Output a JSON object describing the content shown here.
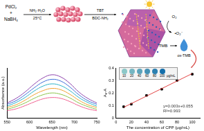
{
  "diagram": {
    "reactants": [
      "PdCl₂",
      "+",
      "NaBH₄"
    ],
    "step1": {
      "above": "NH₂·H₂O",
      "below": "25°C"
    },
    "step2": {
      "above": "TBT",
      "below": "BDC-NH₂"
    },
    "oxygen": "O₂",
    "radical": "•O₂⁻",
    "substrate": "TMB",
    "product": "ox-TMB"
  },
  "chart_data": [
    {
      "type": "line",
      "x_label": "Wavelength (nm)",
      "y_label": "Absorbance (a.u.)",
      "x": [
        550,
        570,
        590,
        610,
        630,
        650,
        670,
        690,
        710,
        730,
        750
      ],
      "xlim": [
        550,
        750
      ],
      "xticks": [
        550,
        600,
        650,
        700,
        750
      ],
      "ylim": [
        0,
        1.1
      ],
      "tick_labels": "x",
      "grid": false,
      "series": [
        {
          "color": "#8e44ad",
          "values": [
            0.33,
            0.43,
            0.57,
            0.74,
            0.88,
            0.95,
            0.9,
            0.76,
            0.57,
            0.43,
            0.33
          ]
        },
        {
          "color": "#3f6fd8",
          "values": [
            0.3,
            0.38,
            0.51,
            0.66,
            0.79,
            0.85,
            0.81,
            0.68,
            0.51,
            0.38,
            0.3
          ]
        },
        {
          "color": "#2bb3c9",
          "values": [
            0.26,
            0.34,
            0.45,
            0.59,
            0.7,
            0.75,
            0.71,
            0.6,
            0.45,
            0.34,
            0.26
          ]
        },
        {
          "color": "#f0a030",
          "values": [
            0.23,
            0.29,
            0.39,
            0.51,
            0.6,
            0.65,
            0.62,
            0.52,
            0.39,
            0.29,
            0.23
          ]
        },
        {
          "color": "#8bc34a",
          "values": [
            0.19,
            0.25,
            0.33,
            0.43,
            0.51,
            0.55,
            0.52,
            0.44,
            0.33,
            0.25,
            0.19
          ]
        },
        {
          "color": "#f06292",
          "values": [
            0.16,
            0.2,
            0.27,
            0.35,
            0.42,
            0.45,
            0.43,
            0.36,
            0.27,
            0.2,
            0.16
          ]
        }
      ]
    },
    {
      "type": "scatter",
      "x_label": "The concentration of CPP (μg/mL)",
      "y_label": "A₀-A",
      "x": [
        10,
        20,
        40,
        60,
        80,
        100
      ],
      "values": [
        0.09,
        0.11,
        0.18,
        0.23,
        0.3,
        0.35
      ],
      "color": "#000000",
      "marker": "square",
      "fit": {
        "x": [
          10,
          100
        ],
        "values": [
          0.085,
          0.355
        ],
        "color": "#e03030"
      },
      "annotations": [
        "y=0.003x+0.055",
        "R²=0.993"
      ],
      "inset": {
        "labels": [
          "10",
          "20",
          "40",
          "60",
          "80",
          "100"
        ],
        "unit": "μg/mL"
      },
      "xlim": [
        0,
        110
      ],
      "xticks": [
        0,
        20,
        40,
        60,
        80,
        100
      ],
      "ylim": [
        0,
        0.4
      ],
      "yticks": [
        0,
        0.1,
        0.2,
        0.3,
        0.4
      ],
      "grid": false
    }
  ]
}
